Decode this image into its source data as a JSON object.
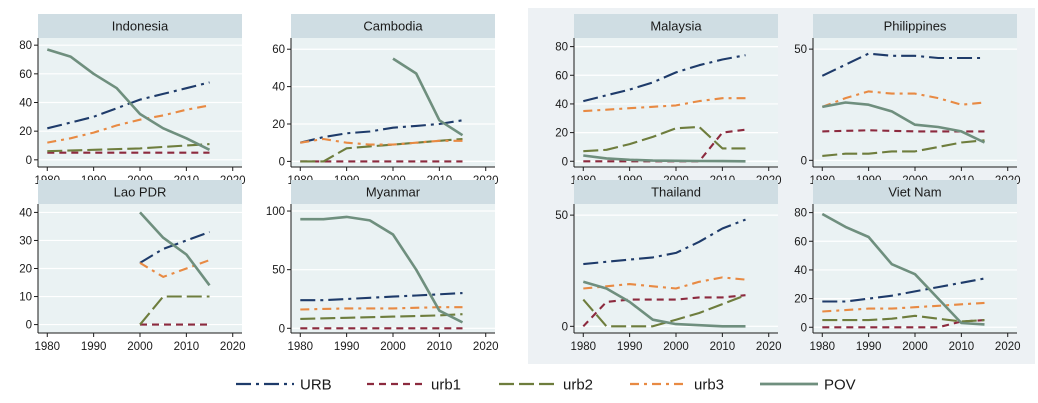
{
  "chart_data": {
    "type": "line",
    "legend": {
      "placement": "bottom",
      "entries": [
        "URB",
        "urb1",
        "urb2",
        "urb3",
        "POV"
      ]
    },
    "series_styles": {
      "URB": {
        "color": "#1e3b6a",
        "dash": "long-dash-dot"
      },
      "urb1": {
        "color": "#8c2a3e",
        "dash": "dash"
      },
      "urb2": {
        "color": "#6e7d3d",
        "dash": "long-dash"
      },
      "urb3": {
        "color": "#e88a43",
        "dash": "dash-dot"
      },
      "POV": {
        "color": "#6f8f7e",
        "dash": "solid"
      }
    },
    "x_ticks": [
      1980,
      1990,
      2000,
      2010,
      2020
    ],
    "xlim": [
      1978,
      2022
    ],
    "panels": [
      {
        "title": "Indonesia",
        "ylim": [
          -5,
          85
        ],
        "yticks": [
          0,
          20,
          40,
          60,
          80
        ],
        "series": {
          "URB": {
            "x": [
              1980,
              1985,
              1990,
              1995,
              2000,
              2005,
              2010,
              2015
            ],
            "y": [
              22,
              26,
              30,
              36,
              42,
              46,
              50,
              54
            ]
          },
          "urb1": {
            "x": [
              1980,
              1990,
              2000,
              2010,
              2015
            ],
            "y": [
              5,
              5,
              5,
              5,
              5
            ]
          },
          "urb2": {
            "x": [
              1980,
              1990,
              2000,
              2010,
              2015
            ],
            "y": [
              6,
              7,
              8,
              10,
              11
            ]
          },
          "urb3": {
            "x": [
              1980,
              1985,
              1990,
              1995,
              2000,
              2005,
              2010,
              2015
            ],
            "y": [
              12,
              15,
              19,
              24,
              28,
              31,
              35,
              38
            ]
          },
          "POV": {
            "x": [
              1980,
              1985,
              1990,
              1995,
              2000,
              2005,
              2010,
              2015
            ],
            "y": [
              77,
              72,
              60,
              50,
              32,
              22,
              15,
              7
            ]
          }
        }
      },
      {
        "title": "Cambodia",
        "ylim": [
          -3,
          66
        ],
        "yticks": [
          0,
          20,
          40,
          60
        ],
        "series": {
          "URB": {
            "x": [
              1980,
              1985,
              1990,
              1995,
              2000,
              2005,
              2010,
              2015
            ],
            "y": [
              10,
              13,
              15,
              16,
              18,
              19,
              20,
              22
            ]
          },
          "urb1": {
            "x": [
              1980,
              1990,
              2000,
              2010,
              2015
            ],
            "y": [
              0,
              0,
              0,
              0,
              0
            ]
          },
          "urb2": {
            "x": [
              1980,
              1985,
              1990,
              1995,
              2000,
              2005,
              2010,
              2015
            ],
            "y": [
              0,
              0,
              7,
              8,
              9,
              10,
              11,
              12
            ]
          },
          "urb3": {
            "x": [
              1980,
              1985,
              1990,
              1995,
              2000,
              2005,
              2010,
              2015
            ],
            "y": [
              10,
              12,
              10,
              9,
              9,
              10,
              11,
              11
            ]
          },
          "POV": {
            "x": [
              2000,
              2005,
              2010,
              2015
            ],
            "y": [
              55,
              47,
              22,
              14
            ]
          }
        }
      },
      {
        "title": "Malaysia",
        "ylim": [
          -4,
          86
        ],
        "yticks": [
          0,
          20,
          40,
          60,
          80
        ],
        "series": {
          "URB": {
            "x": [
              1980,
              1985,
              1990,
              1995,
              2000,
              2005,
              2010,
              2015
            ],
            "y": [
              42,
              46,
              50,
              55,
              62,
              67,
              71,
              74
            ]
          },
          "urb1": {
            "x": [
              1980,
              1990,
              2000,
              2005,
              2010,
              2015
            ],
            "y": [
              0,
              0,
              0,
              0,
              20,
              22
            ]
          },
          "urb2": {
            "x": [
              1980,
              1985,
              1990,
              1995,
              2000,
              2005,
              2010,
              2015
            ],
            "y": [
              7,
              8,
              12,
              17,
              23,
              24,
              9,
              9
            ]
          },
          "urb3": {
            "x": [
              1980,
              1985,
              1990,
              1995,
              2000,
              2005,
              2010,
              2015
            ],
            "y": [
              35,
              36,
              37,
              38,
              39,
              42,
              44,
              44
            ]
          },
          "POV": {
            "x": [
              1980,
              1985,
              1990,
              1995,
              2000,
              2005,
              2010,
              2015
            ],
            "y": [
              4,
              2,
              1,
              0.5,
              0.3,
              0.2,
              0.1,
              0
            ]
          }
        }
      },
      {
        "title": "Philippines",
        "ylim": [
          -3,
          55
        ],
        "yticks": [
          0,
          50
        ],
        "series": {
          "URB": {
            "x": [
              1980,
              1985,
              1990,
              1995,
              2000,
              2005,
              2010,
              2015
            ],
            "y": [
              38,
              43,
              48,
              47,
              47,
              46,
              46,
              46
            ]
          },
          "urb1": {
            "x": [
              1980,
              1990,
              2000,
              2010,
              2015
            ],
            "y": [
              13,
              13.5,
              13,
              13,
              13
            ]
          },
          "urb2": {
            "x": [
              1980,
              1985,
              1990,
              1995,
              2000,
              2005,
              2010,
              2015
            ],
            "y": [
              2,
              3,
              3,
              4,
              4,
              6,
              8,
              9
            ]
          },
          "urb3": {
            "x": [
              1980,
              1985,
              1990,
              1995,
              2000,
              2005,
              2010,
              2015
            ],
            "y": [
              24,
              28,
              31,
              30,
              30,
              28,
              25,
              26
            ]
          },
          "POV": {
            "x": [
              1980,
              1985,
              1990,
              1995,
              2000,
              2005,
              2010,
              2015
            ],
            "y": [
              24,
              26,
              25,
              22,
              16,
              15,
              13,
              8
            ]
          }
        }
      },
      {
        "title": "Lao PDR",
        "ylim": [
          -3,
          43
        ],
        "yticks": [
          0,
          10,
          20,
          30,
          40
        ],
        "series": {
          "URB": {
            "x": [
              2000,
              2005,
              2010,
              2015
            ],
            "y": [
              22,
              27,
              30,
              33
            ]
          },
          "urb1": {
            "x": [
              2000,
              2005,
              2010,
              2015
            ],
            "y": [
              0,
              0,
              0,
              0
            ]
          },
          "urb2": {
            "x": [
              2000,
              2005,
              2010,
              2015
            ],
            "y": [
              0,
              10,
              10,
              10
            ]
          },
          "urb3": {
            "x": [
              2000,
              2005,
              2010,
              2015
            ],
            "y": [
              22,
              17,
              20,
              23
            ]
          },
          "POV": {
            "x": [
              2000,
              2005,
              2010,
              2015
            ],
            "y": [
              40,
              31,
              25,
              14
            ]
          }
        }
      },
      {
        "title": "Myanmar",
        "ylim": [
          -4,
          106
        ],
        "yticks": [
          0,
          50,
          100
        ],
        "series": {
          "URB": {
            "x": [
              1980,
              1985,
              1990,
              1995,
              2000,
              2005,
              2010,
              2015
            ],
            "y": [
              24,
              24,
              25,
              26,
              27,
              28,
              29,
              30
            ]
          },
          "urb1": {
            "x": [
              1980,
              1990,
              2000,
              2010,
              2015
            ],
            "y": [
              0,
              0,
              0,
              0,
              0
            ]
          },
          "urb2": {
            "x": [
              1980,
              1990,
              2000,
              2010,
              2015
            ],
            "y": [
              8,
              9,
              10,
              11,
              12
            ]
          },
          "urb3": {
            "x": [
              1980,
              1990,
              2000,
              2010,
              2015
            ],
            "y": [
              16,
              17,
              17,
              18,
              18
            ]
          },
          "POV": {
            "x": [
              1980,
              1985,
              1990,
              1995,
              2000,
              2005,
              2010,
              2015
            ],
            "y": [
              93,
              93,
              95,
              92,
              80,
              50,
              15,
              5
            ]
          }
        }
      },
      {
        "title": "Thailand",
        "ylim": [
          -3,
          55
        ],
        "yticks": [
          0,
          50
        ],
        "series": {
          "URB": {
            "x": [
              1980,
              1985,
              1990,
              1995,
              2000,
              2005,
              2010,
              2015
            ],
            "y": [
              28,
              29,
              30,
              31,
              33,
              38,
              44,
              48
            ]
          },
          "urb1": {
            "x": [
              1980,
              1985,
              1990,
              1995,
              2000,
              2005,
              2010,
              2015
            ],
            "y": [
              0,
              11,
              12,
              12,
              12,
              13,
              13,
              14
            ]
          },
          "urb2": {
            "x": [
              1980,
              1985,
              1990,
              1995,
              2000,
              2005,
              2010,
              2015
            ],
            "y": [
              12,
              0,
              0,
              0,
              3,
              6,
              10,
              14
            ]
          },
          "urb3": {
            "x": [
              1980,
              1985,
              1990,
              1995,
              2000,
              2005,
              2010,
              2015
            ],
            "y": [
              17,
              18,
              19,
              18,
              17,
              20,
              22,
              21
            ]
          },
          "POV": {
            "x": [
              1980,
              1985,
              1990,
              1995,
              2000,
              2005,
              2010,
              2015
            ],
            "y": [
              20,
              17,
              11,
              3,
              1,
              0.5,
              0,
              0
            ]
          }
        }
      },
      {
        "title": "Viet Nam",
        "ylim": [
          -4,
          86
        ],
        "yticks": [
          0,
          20,
          40,
          60,
          80
        ],
        "series": {
          "URB": {
            "x": [
              1980,
              1985,
              1990,
              1995,
              2000,
              2005,
              2010,
              2015
            ],
            "y": [
              18,
              18,
              20,
              22,
              25,
              28,
              31,
              34
            ]
          },
          "urb1": {
            "x": [
              1980,
              1990,
              2000,
              2005,
              2010,
              2015
            ],
            "y": [
              0,
              0,
              0,
              0,
              4,
              5
            ]
          },
          "urb2": {
            "x": [
              1980,
              1985,
              1990,
              1995,
              2000,
              2005,
              2010,
              2015
            ],
            "y": [
              5,
              5,
              5,
              6,
              8,
              6,
              4,
              5
            ]
          },
          "urb3": {
            "x": [
              1980,
              1985,
              1990,
              1995,
              2000,
              2005,
              2010,
              2015
            ],
            "y": [
              11,
              12,
              13,
              13,
              14,
              15,
              16,
              17
            ]
          },
          "POV": {
            "x": [
              1980,
              1985,
              1990,
              1995,
              2000,
              2005,
              2010,
              2015
            ],
            "y": [
              79,
              70,
              63,
              44,
              37,
              20,
              3,
              2
            ]
          }
        }
      }
    ]
  }
}
